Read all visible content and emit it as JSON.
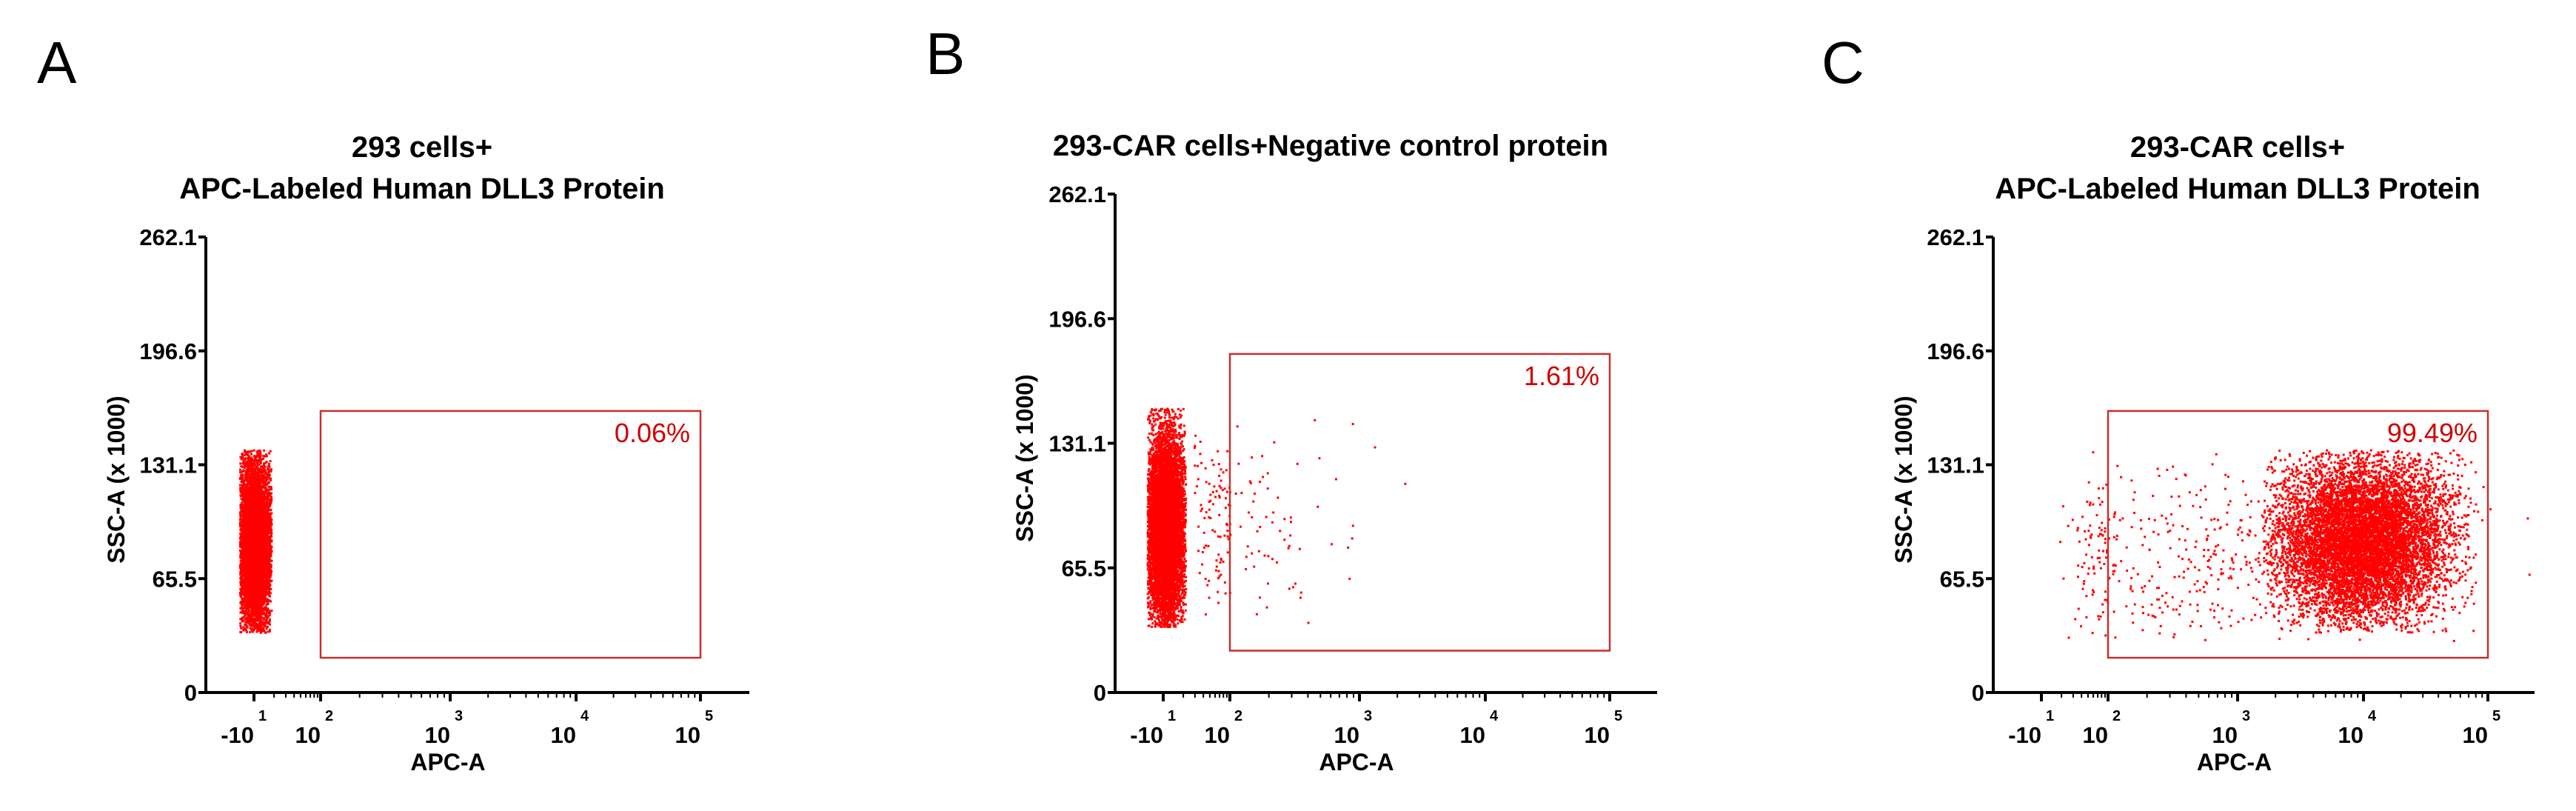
{
  "chart_data": [
    {
      "type": "scatter",
      "panel": "A",
      "title": [
        "293 cells+",
        "APC-Labeled Human DLL3 Protein"
      ],
      "xlabel": "APC-A",
      "ylabel": "SSC-A (x 1000)",
      "xticks": [
        {
          "base": "-10",
          "exp": "1"
        },
        {
          "base": "10",
          "exp": "2"
        },
        {
          "base": "10",
          "exp": "3"
        },
        {
          "base": "10",
          "exp": "4"
        },
        {
          "base": "10",
          "exp": "5"
        }
      ],
      "yticks": [
        "0",
        "65.5",
        "131.1",
        "196.6",
        "262.1"
      ],
      "ylim": [
        0,
        262.1
      ],
      "gate_label": "0.06%",
      "gate": {
        "x": [
          2,
          5
        ],
        "y": [
          20,
          162
        ]
      },
      "color": "#ff0000",
      "populations": [
        {
          "x_center": 0.0,
          "x_spread": 0.28,
          "y_center": 85,
          "y_spread": 26,
          "y_min": 35,
          "y_max": 140,
          "x_min": -0.45,
          "x_max": 0.5,
          "count": 7000
        }
      ]
    },
    {
      "type": "scatter",
      "panel": "B",
      "title": [
        "293-CAR cells+Negative control protein"
      ],
      "xlabel": "APC-A",
      "ylabel": "SSC-A (x 1000)",
      "xticks": [
        {
          "base": "-10",
          "exp": "1"
        },
        {
          "base": "10",
          "exp": "2"
        },
        {
          "base": "10",
          "exp": "3"
        },
        {
          "base": "10",
          "exp": "4"
        },
        {
          "base": "10",
          "exp": "5"
        }
      ],
      "yticks": [
        "0",
        "65.5",
        "131.1",
        "196.6",
        "262.1"
      ],
      "ylim": [
        0,
        262.1
      ],
      "gate_label": "1.61%",
      "gate": {
        "x": [
          2,
          5
        ],
        "y": [
          22,
          178
        ]
      },
      "color": "#ff0000",
      "populations": [
        {
          "x_center": 0.05,
          "x_spread": 0.3,
          "y_center": 88,
          "y_spread": 26,
          "y_min": 35,
          "y_max": 150,
          "x_min": -0.5,
          "x_max": 0.65,
          "count": 8000
        },
        {
          "x_center": 1.7,
          "x_spread": 0.6,
          "y_center": 90,
          "y_spread": 28,
          "y_min": 35,
          "y_max": 150,
          "x_min": 0.9,
          "x_max": 4.2,
          "count": 180
        }
      ]
    },
    {
      "type": "scatter",
      "panel": "C",
      "title": [
        "293-CAR cells+",
        "APC-Labeled Human DLL3 Protein"
      ],
      "xlabel": "APC-A",
      "ylabel": "SSC-A (x 1000)",
      "xticks": [
        {
          "base": "-10",
          "exp": "1"
        },
        {
          "base": "10",
          "exp": "2"
        },
        {
          "base": "10",
          "exp": "3"
        },
        {
          "base": "10",
          "exp": "4"
        },
        {
          "base": "10",
          "exp": "5"
        }
      ],
      "yticks": [
        "0",
        "65.5",
        "131.1",
        "196.6",
        "262.1"
      ],
      "ylim": [
        0,
        262.1
      ],
      "gate_label": "99.49%",
      "gate": {
        "x": [
          2,
          5
        ],
        "y": [
          20,
          162
        ]
      },
      "color": "#ff0000",
      "populations": [
        {
          "x_center": 4.0,
          "x_spread": 0.35,
          "y_center": 88,
          "y_spread": 24,
          "y_min": 35,
          "y_max": 140,
          "x_min": 3.2,
          "x_max": 4.9,
          "count": 9000
        },
        {
          "x_center": 3.0,
          "x_spread": 0.9,
          "y_center": 78,
          "y_spread": 28,
          "y_min": 30,
          "y_max": 140,
          "x_min": 0.5,
          "x_max": 5.4,
          "count": 600
        }
      ]
    }
  ]
}
